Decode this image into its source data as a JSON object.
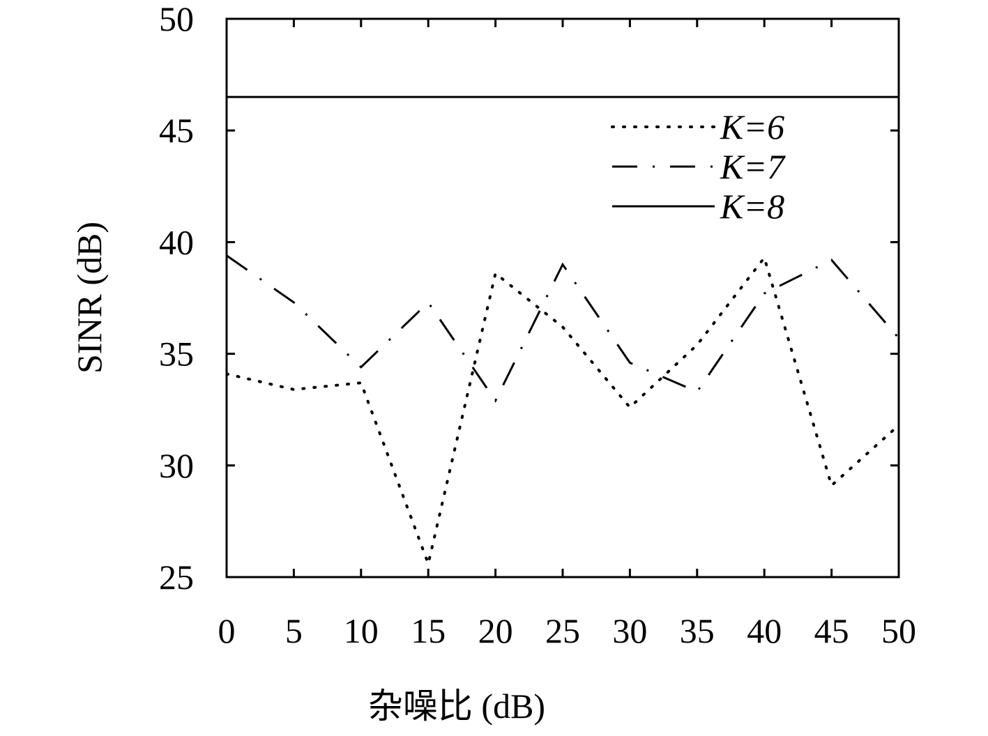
{
  "chart_data": {
    "type": "line",
    "xlabel": "杂噪比 (dB)",
    "ylabel": "SINR (dB)",
    "x": [
      0,
      5,
      10,
      15,
      20,
      25,
      30,
      35,
      40,
      45,
      50
    ],
    "series": [
      {
        "name": "K=6",
        "color": "#000000",
        "style": "dotted",
        "values": [
          34.1,
          33.4,
          33.7,
          25.6,
          38.6,
          36.2,
          32.6,
          35.4,
          39.3,
          29.1,
          31.8
        ]
      },
      {
        "name": "K=7",
        "color": "#000000",
        "style": "dashdot",
        "values": [
          39.4,
          37.3,
          34.4,
          37.3,
          32.9,
          39.0,
          34.6,
          33.3,
          37.7,
          39.2,
          35.7
        ]
      },
      {
        "name": "K=8",
        "color": "#000000",
        "style": "solid",
        "values": [
          46.5,
          46.5,
          46.5,
          46.5,
          46.5,
          46.5,
          46.5,
          46.5,
          46.5,
          46.5,
          46.5
        ]
      }
    ],
    "xlim": [
      0,
      50
    ],
    "xticks": [
      0,
      5,
      10,
      15,
      20,
      25,
      30,
      35,
      40,
      45,
      50
    ],
    "ylim": [
      25,
      50
    ],
    "yticks": [
      25,
      30,
      35,
      40,
      45,
      50
    ],
    "legend": "upper-right"
  }
}
